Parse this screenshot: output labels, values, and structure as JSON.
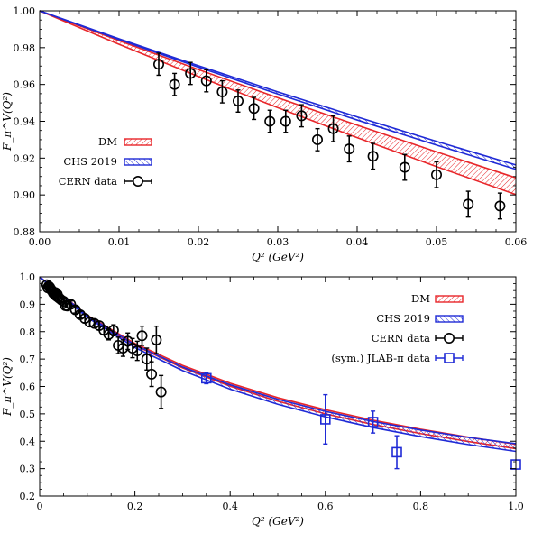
{
  "chart_data": [
    {
      "type": "line",
      "xlabel": "Q² (GeV²)",
      "ylabel": "F_π^V(Q²)",
      "xlim": [
        0,
        0.06
      ],
      "ylim": [
        0.88,
        1.0
      ],
      "xticks": [
        "0.00",
        "0.01",
        "0.02",
        "0.03",
        "0.04",
        "0.05",
        "0.06"
      ],
      "yticks": [
        "0.88",
        "0.90",
        "0.92",
        "0.94",
        "0.96",
        "0.98",
        "1.00"
      ],
      "legend_position": "left-middle",
      "bands": [
        {
          "name": "DM",
          "color": "#e8262a",
          "x": [
            0,
            0.01,
            0.02,
            0.03,
            0.04,
            0.05,
            0.06
          ],
          "upper": [
            1.0,
            0.9838,
            0.9681,
            0.9528,
            0.9379,
            0.9234,
            0.9093
          ],
          "lower": [
            1.0,
            0.9818,
            0.9643,
            0.9474,
            0.9311,
            0.9154,
            0.9002
          ]
        },
        {
          "name": "CHS 2019",
          "color": "#1f2ad6",
          "x": [
            0,
            0.01,
            0.02,
            0.03,
            0.04,
            0.05,
            0.06
          ],
          "upper": [
            1.0,
            0.9848,
            0.9702,
            0.956,
            0.9424,
            0.9291,
            0.9163
          ],
          "lower": [
            1.0,
            0.9844,
            0.9694,
            0.9548,
            0.9407,
            0.9271,
            0.9139
          ]
        }
      ],
      "series": [
        {
          "name": "CERN data",
          "marker": "circle",
          "color": "#000000",
          "points": [
            [
              0.015,
              0.971,
              0.006
            ],
            [
              0.017,
              0.96,
              0.006
            ],
            [
              0.019,
              0.966,
              0.006
            ],
            [
              0.021,
              0.962,
              0.006
            ],
            [
              0.023,
              0.956,
              0.006
            ],
            [
              0.025,
              0.951,
              0.006
            ],
            [
              0.027,
              0.947,
              0.006
            ],
            [
              0.029,
              0.94,
              0.006
            ],
            [
              0.031,
              0.94,
              0.006
            ],
            [
              0.033,
              0.943,
              0.006
            ],
            [
              0.035,
              0.93,
              0.006
            ],
            [
              0.037,
              0.936,
              0.007
            ],
            [
              0.039,
              0.925,
              0.007
            ],
            [
              0.042,
              0.921,
              0.007
            ],
            [
              0.046,
              0.915,
              0.007
            ],
            [
              0.05,
              0.911,
              0.007
            ],
            [
              0.054,
              0.895,
              0.007
            ],
            [
              0.058,
              0.894,
              0.007
            ]
          ]
        }
      ]
    },
    {
      "type": "line",
      "xlabel": "Q² (GeV²)",
      "ylabel": "F_π^V(Q²)",
      "xlim": [
        0,
        1.0
      ],
      "ylim": [
        0.2,
        1.0
      ],
      "xticks": [
        "0",
        "0.2",
        "0.4",
        "0.6",
        "0.8",
        "1.0"
      ],
      "yticks": [
        "0.2",
        "0.3",
        "0.4",
        "0.5",
        "0.6",
        "0.7",
        "0.8",
        "0.9",
        "1.0"
      ],
      "legend_position": "top-right",
      "bands": [
        {
          "name": "DM",
          "color": "#e8262a",
          "x": [
            0,
            0.1,
            0.2,
            0.3,
            0.4,
            0.5,
            0.6,
            0.7,
            0.8,
            0.9,
            1.0
          ],
          "upper": [
            1.0,
            0.86,
            0.757,
            0.677,
            0.612,
            0.559,
            0.515,
            0.477,
            0.444,
            0.415,
            0.389
          ],
          "lower": [
            1.0,
            0.855,
            0.75,
            0.668,
            0.601,
            0.546,
            0.5,
            0.461,
            0.428,
            0.399,
            0.373
          ]
        },
        {
          "name": "CHS 2019",
          "color": "#1f2ad6",
          "x": [
            0,
            0.1,
            0.2,
            0.3,
            0.4,
            0.5,
            0.6,
            0.7,
            0.8,
            0.9,
            1.0
          ],
          "upper": [
            1.0,
            0.858,
            0.752,
            0.671,
            0.606,
            0.553,
            0.509,
            0.472,
            0.441,
            0.414,
            0.391
          ],
          "lower": [
            1.0,
            0.852,
            0.742,
            0.658,
            0.59,
            0.535,
            0.489,
            0.45,
            0.417,
            0.388,
            0.363
          ]
        }
      ],
      "series": [
        {
          "name": "CERN data",
          "marker": "circle",
          "color": "#000000",
          "points": [
            [
              0.015,
              0.971,
              0.006
            ],
            [
              0.017,
              0.96,
              0.006
            ],
            [
              0.019,
              0.966,
              0.006
            ],
            [
              0.021,
              0.962,
              0.006
            ],
            [
              0.023,
              0.956,
              0.006
            ],
            [
              0.025,
              0.951,
              0.006
            ],
            [
              0.027,
              0.947,
              0.006
            ],
            [
              0.029,
              0.94,
              0.006
            ],
            [
              0.031,
              0.94,
              0.006
            ],
            [
              0.033,
              0.943,
              0.006
            ],
            [
              0.035,
              0.93,
              0.006
            ],
            [
              0.037,
              0.936,
              0.007
            ],
            [
              0.039,
              0.925,
              0.007
            ],
            [
              0.042,
              0.921,
              0.007
            ],
            [
              0.046,
              0.915,
              0.007
            ],
            [
              0.05,
              0.911,
              0.007
            ],
            [
              0.054,
              0.895,
              0.007
            ],
            [
              0.058,
              0.894,
              0.007
            ],
            [
              0.065,
              0.9,
              0.012
            ],
            [
              0.075,
              0.88,
              0.012
            ],
            [
              0.085,
              0.862,
              0.012
            ],
            [
              0.095,
              0.848,
              0.015
            ],
            [
              0.105,
              0.835,
              0.015
            ],
            [
              0.115,
              0.83,
              0.015
            ],
            [
              0.125,
              0.822,
              0.015
            ],
            [
              0.135,
              0.805,
              0.015
            ],
            [
              0.145,
              0.79,
              0.02
            ],
            [
              0.155,
              0.805,
              0.02
            ],
            [
              0.165,
              0.75,
              0.03
            ],
            [
              0.175,
              0.74,
              0.03
            ],
            [
              0.185,
              0.765,
              0.03
            ],
            [
              0.195,
              0.74,
              0.035
            ],
            [
              0.205,
              0.73,
              0.035
            ],
            [
              0.215,
              0.785,
              0.035
            ],
            [
              0.225,
              0.7,
              0.04
            ],
            [
              0.235,
              0.645,
              0.045
            ],
            [
              0.245,
              0.77,
              0.05
            ],
            [
              0.255,
              0.58,
              0.06
            ]
          ]
        },
        {
          "name": "(sym.) JLAB-π data",
          "marker": "square",
          "color": "#1f2ad6",
          "points": [
            [
              0.35,
              0.63,
              0.02
            ],
            [
              0.6,
              0.48,
              0.09
            ],
            [
              0.7,
              0.47,
              0.04
            ],
            [
              0.75,
              0.36,
              0.06
            ],
            [
              1.0,
              0.315,
              0.0
            ]
          ]
        }
      ]
    }
  ]
}
